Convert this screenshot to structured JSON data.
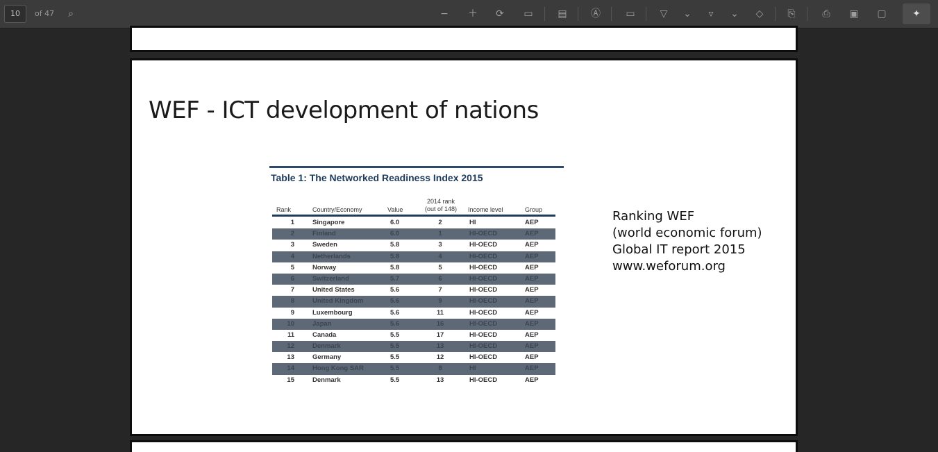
{
  "toolbar": {
    "page_number": "10",
    "page_count": "of 47",
    "icons": [
      "search-icon",
      "zoom-out-icon",
      "zoom-in-icon",
      "rotate-icon",
      "fit-page-icon",
      "page-view-icon",
      "read-aloud-icon",
      "draw-box-icon",
      "highlight-icon",
      "chevron-down-icon",
      "filter-icon",
      "chevron-down-icon",
      "eraser-icon",
      "stamp-icon",
      "print-icon",
      "save-icon",
      "save-as-icon",
      "pin-icon"
    ]
  },
  "slide": {
    "title": "WEF - ICT development of nations"
  },
  "table": {
    "caption": "Table 1: The Networked Readiness Index 2015",
    "columns": {
      "rank": "Rank",
      "country": "Country/Economy",
      "value": "Value",
      "prev_rank_line1": "2014 rank",
      "prev_rank_line2": "(out of 148)",
      "income": "Income level",
      "group": "Group"
    },
    "rows": [
      {
        "rank": "1",
        "country": "Singapore",
        "value": "6.0",
        "prev": "2",
        "income": "HI",
        "group": "AEP"
      },
      {
        "rank": "2",
        "country": "Finland",
        "value": "6.0",
        "prev": "1",
        "income": "HI-OECD",
        "group": "AEP"
      },
      {
        "rank": "3",
        "country": "Sweden",
        "value": "5.8",
        "prev": "3",
        "income": "HI-OECD",
        "group": "AEP"
      },
      {
        "rank": "4",
        "country": "Netherlands",
        "value": "5.8",
        "prev": "4",
        "income": "HI-OECD",
        "group": "AEP"
      },
      {
        "rank": "5",
        "country": "Norway",
        "value": "5.8",
        "prev": "5",
        "income": "HI-OECD",
        "group": "AEP"
      },
      {
        "rank": "6",
        "country": "Switzerland",
        "value": "5.7",
        "prev": "6",
        "income": "HI-OECD",
        "group": "AEP"
      },
      {
        "rank": "7",
        "country": "United States",
        "value": "5.6",
        "prev": "7",
        "income": "HI-OECD",
        "group": "AEP"
      },
      {
        "rank": "8",
        "country": "United Kingdom",
        "value": "5.6",
        "prev": "9",
        "income": "HI-OECD",
        "group": "AEP"
      },
      {
        "rank": "9",
        "country": "Luxembourg",
        "value": "5.6",
        "prev": "11",
        "income": "HI-OECD",
        "group": "AEP"
      },
      {
        "rank": "10",
        "country": "Japan",
        "value": "5.6",
        "prev": "16",
        "income": "HI-OECD",
        "group": "AEP"
      },
      {
        "rank": "11",
        "country": "Canada",
        "value": "5.5",
        "prev": "17",
        "income": "HI-OECD",
        "group": "AEP"
      },
      {
        "rank": "12",
        "country": "Denmark",
        "value": "5.5",
        "prev": "13",
        "income": "HI-OECD",
        "group": "AEP"
      },
      {
        "rank": "13",
        "country": "Germany",
        "value": "5.5",
        "prev": "12",
        "income": "HI-OECD",
        "group": "AEP"
      },
      {
        "rank": "14",
        "country": "Hong Kong SAR",
        "value": "5.5",
        "prev": "8",
        "income": "HI",
        "group": "AEP"
      },
      {
        "rank": "15",
        "country": "Denmark",
        "value": "5.5",
        "prev": "13",
        "income": "HI-OECD",
        "group": "AEP"
      }
    ]
  },
  "note": {
    "line1": "Ranking WEF",
    "line2": "(world economic forum)",
    "line3": "Global IT report 2015",
    "line4": "www.weforum.org"
  }
}
